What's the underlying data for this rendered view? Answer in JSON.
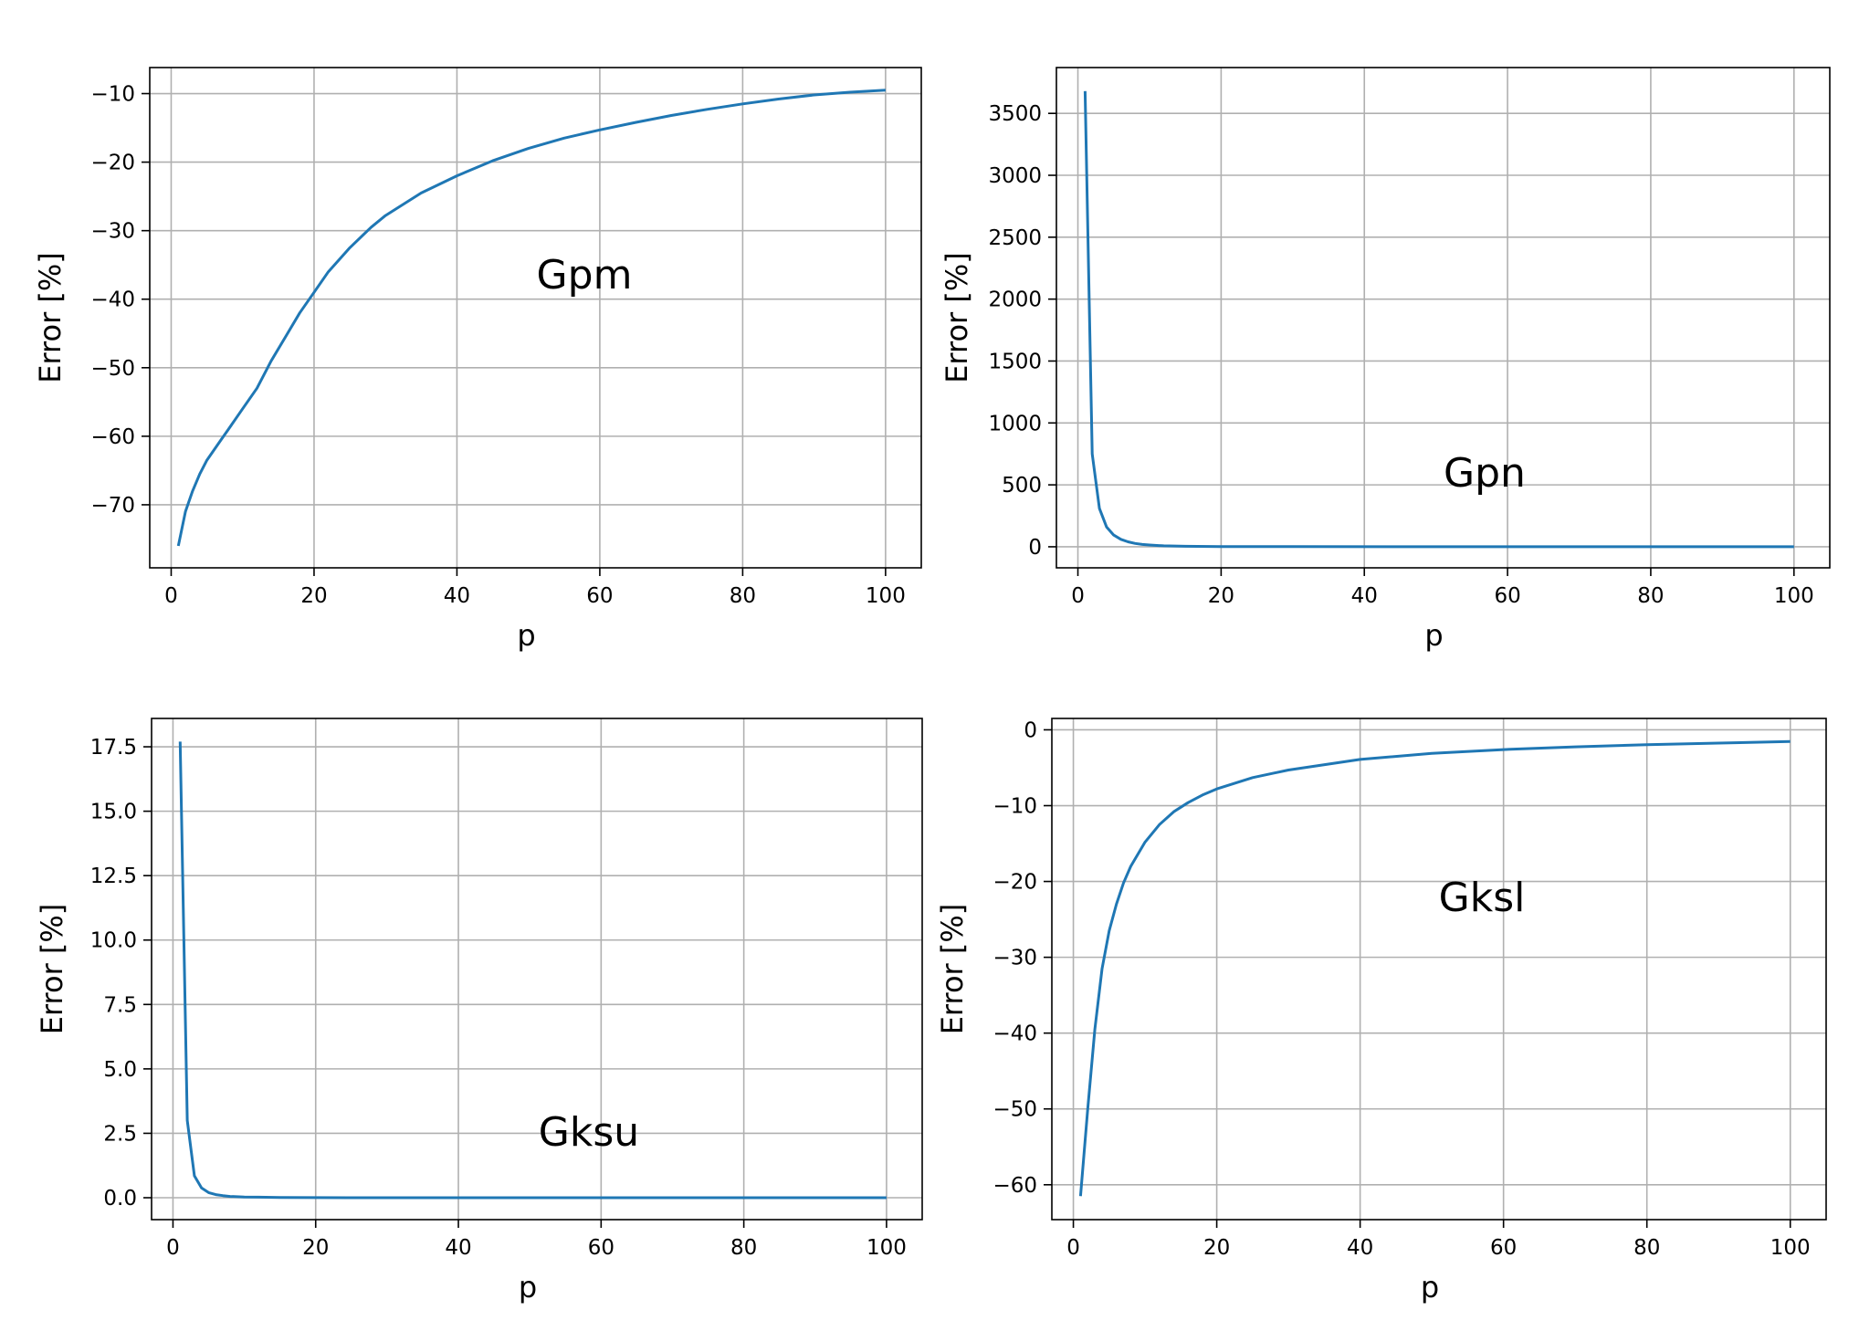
{
  "figure": {
    "background": "#ffffff",
    "line_color": "#1f77b4",
    "grid_color": "#b0b0b0"
  },
  "chart_data": [
    {
      "type": "line",
      "annotation": "Gpm",
      "xlabel": "p",
      "ylabel": "Error [%]",
      "xlim": [
        -3,
        105
      ],
      "ylim": [
        -79.2,
        -6.2
      ],
      "xticks": [
        0,
        20,
        40,
        60,
        80,
        100
      ],
      "yticks": [
        -70,
        -60,
        -50,
        -40,
        -30,
        -20,
        -10
      ],
      "grid": true,
      "series": [
        {
          "x": [
            1,
            2,
            3,
            4,
            5,
            6,
            7,
            8,
            10,
            12,
            14,
            16,
            18,
            20,
            22,
            25,
            28,
            30,
            35,
            40,
            45,
            50,
            55,
            60,
            65,
            70,
            75,
            80,
            85,
            90,
            95,
            100
          ],
          "values": [
            -76,
            -71,
            -68,
            -65.5,
            -63.5,
            -62,
            -60.5,
            -59,
            -56,
            -53,
            -49,
            -45.5,
            -42,
            -39,
            -36,
            -32.5,
            -29.5,
            -27.8,
            -24.5,
            -22,
            -19.8,
            -18,
            -16.5,
            -15.3,
            -14.2,
            -13.2,
            -12.3,
            -11.5,
            -10.8,
            -10.2,
            -9.8,
            -9.5
          ]
        }
      ]
    },
    {
      "type": "line",
      "annotation": "Gpn",
      "xlabel": "p",
      "ylabel": "Error [%]",
      "xlim": [
        -3,
        105
      ],
      "ylim": [
        -170,
        3870
      ],
      "xticks": [
        0,
        20,
        40,
        60,
        80,
        100
      ],
      "yticks": [
        0,
        500,
        1000,
        1500,
        2000,
        2500,
        3000,
        3500
      ],
      "grid": true,
      "series": [
        {
          "x": [
            1,
            2,
            3,
            4,
            5,
            6,
            7,
            8,
            9,
            10,
            12,
            15,
            20,
            30,
            50,
            100
          ],
          "values": [
            3680,
            750,
            310,
            160,
            95,
            60,
            40,
            27,
            19,
            14,
            8,
            4,
            2,
            0.8,
            0.3,
            0.05
          ]
        }
      ]
    },
    {
      "type": "line",
      "annotation": "Gksu",
      "xlabel": "p",
      "ylabel": "Error [%]",
      "xlim": [
        -3,
        105
      ],
      "ylim": [
        -0.85,
        18.6
      ],
      "xticks": [
        0,
        20,
        40,
        60,
        80,
        100
      ],
      "yticks": [
        0.0,
        2.5,
        5.0,
        7.5,
        10.0,
        12.5,
        15.0,
        17.5
      ],
      "grid": true,
      "series": [
        {
          "x": [
            1,
            2,
            3,
            4,
            5,
            6,
            7,
            8,
            10,
            12,
            15,
            20,
            30,
            50,
            100
          ],
          "values": [
            17.7,
            3.0,
            0.85,
            0.38,
            0.2,
            0.12,
            0.08,
            0.05,
            0.03,
            0.02,
            0.01,
            0.005,
            0.002,
            0.001,
            0.0
          ]
        }
      ]
    },
    {
      "type": "line",
      "annotation": "Gksl",
      "xlabel": "p",
      "ylabel": "Error [%]",
      "xlim": [
        -3,
        105
      ],
      "ylim": [
        -64.6,
        1.5
      ],
      "xticks": [
        0,
        20,
        40,
        60,
        80,
        100
      ],
      "yticks": [
        -60,
        -50,
        -40,
        -30,
        -20,
        -10,
        0
      ],
      "grid": true,
      "series": [
        {
          "x": [
            1,
            2,
            3,
            4,
            5,
            6,
            7,
            8,
            10,
            12,
            14,
            16,
            18,
            20,
            25,
            30,
            40,
            50,
            60,
            70,
            80,
            90,
            100
          ],
          "values": [
            -61.5,
            -50,
            -39.5,
            -31.5,
            -26.5,
            -23,
            -20.2,
            -18,
            -14.8,
            -12.5,
            -10.8,
            -9.6,
            -8.6,
            -7.8,
            -6.3,
            -5.3,
            -3.9,
            -3.1,
            -2.6,
            -2.25,
            -1.95,
            -1.75,
            -1.55
          ]
        }
      ]
    }
  ]
}
